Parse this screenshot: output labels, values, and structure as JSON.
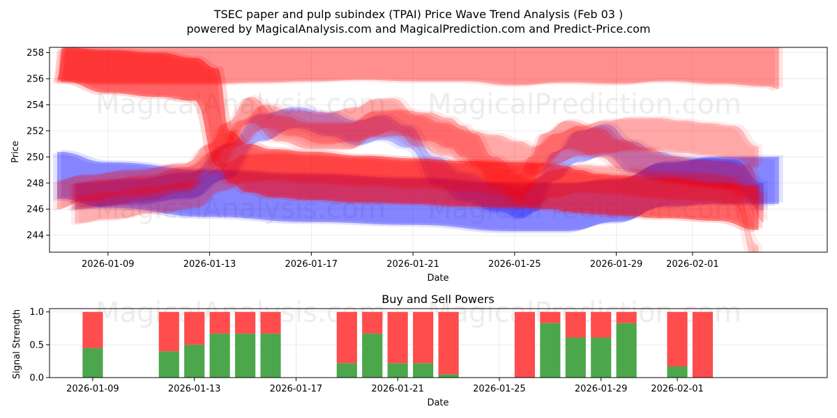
{
  "chart_data": [
    {
      "type": "area",
      "title_line1": "TSEC paper and pulp subindex (TPAI) Price Wave Trend Analysis (Feb 03 )",
      "title_line2": "powered by MagicalAnalysis.com and MagicalPrediction.com and Predict-Price.com",
      "xlabel": "Date",
      "ylabel": "Price",
      "xlim": [
        -2.3,
        28.3
      ],
      "ylim": [
        242.7,
        258.4
      ],
      "x_tick_labels": [
        "2026-01-09",
        "2026-01-13",
        "2026-01-17",
        "2026-01-21",
        "2026-01-25",
        "2026-01-29",
        "2026-02-01"
      ],
      "x_tick_days": [
        0,
        4,
        8,
        12,
        16,
        20,
        23
      ],
      "y_ticks": [
        244,
        246,
        248,
        250,
        252,
        254,
        256,
        258
      ],
      "grid": true,
      "watermark_text": [
        "MagicalAnalysis.com",
        "MagicalPrediction.com"
      ],
      "colors": {
        "sell": "#ff0000",
        "buy": "#0000ff",
        "white": "#ffffff"
      },
      "bands": [
        {
          "name": "blue wide band",
          "color": "#0000ff",
          "opacity": 0.33,
          "x": [
            -2,
            0,
            4,
            8,
            12,
            16,
            18,
            20,
            22,
            24,
            26.4
          ],
          "upper": [
            250.4,
            249.6,
            249,
            248.7,
            248.4,
            248,
            248,
            248.3,
            249.6,
            250,
            250
          ],
          "lower": [
            246.8,
            246.1,
            245.4,
            245,
            244.8,
            244.3,
            244.3,
            245,
            246.2,
            246.4,
            246.4
          ]
        },
        {
          "name": "blue wave band",
          "color": "#0000ff",
          "opacity": 0.22,
          "x": [
            -1.3,
            1,
            3.2,
            4.7,
            6,
            7.4,
            8.7,
            9.8,
            10.8,
            11.8,
            12.9,
            14,
            15.3,
            16.3,
            16.8,
            17.6,
            18.5,
            19.6,
            20.6,
            21.6,
            22.6,
            23.6,
            24.6,
            25.8
          ],
          "upper": [
            248,
            248.3,
            248.8,
            251,
            253.3,
            253.8,
            253.4,
            252.8,
            253.2,
            252.4,
            250,
            248.8,
            248,
            247.6,
            248.2,
            250.4,
            252,
            252.5,
            251.2,
            250.4,
            250,
            249.9,
            249.8,
            248
          ],
          "lower": [
            246,
            246.4,
            246.8,
            248.3,
            251.2,
            252.2,
            251.6,
            250.9,
            251.3,
            250.7,
            247.8,
            246.6,
            245.8,
            245.3,
            245.8,
            248.2,
            249.6,
            250.1,
            248.8,
            248.2,
            248,
            247.8,
            247.6,
            245.9
          ]
        },
        {
          "name": "red top band",
          "color": "#ff0000",
          "opacity": 0.3,
          "x": [
            -2,
            -1.7,
            0,
            4,
            6,
            8,
            10,
            12,
            14,
            16,
            18,
            20,
            22,
            24,
            26,
            26.4
          ],
          "upper": [
            256,
            258.4,
            258.4,
            258.4,
            258.4,
            258.4,
            258.4,
            258.4,
            258.4,
            258.4,
            258.4,
            258.4,
            258.4,
            258.4,
            258.4,
            258.4
          ],
          "lower": [
            255.8,
            255.7,
            255.6,
            255.6,
            255.7,
            255.8,
            255.9,
            255.8,
            255.8,
            255.5,
            255.7,
            255.6,
            255.8,
            255.6,
            255.4,
            255.2
          ]
        },
        {
          "name": "red step band",
          "color": "#ff0000",
          "opacity": 0.45,
          "x": [
            -2,
            -1.8,
            0,
            2,
            3.4,
            4.3,
            4.8,
            5.5,
            6.5,
            8,
            10,
            12,
            14,
            16,
            17.5,
            18,
            18.5,
            19.3,
            20,
            22,
            24,
            25.6
          ],
          "upper": [
            256,
            258.4,
            258.2,
            258,
            257.6,
            256.8,
            252,
            251,
            250.6,
            250.4,
            250.1,
            249.9,
            249.7,
            249.6,
            249.5,
            249.3,
            249,
            248.7,
            248.6,
            248.4,
            248,
            247.8
          ],
          "lower": [
            256,
            255.8,
            254.9,
            254.6,
            254.3,
            249.3,
            248,
            247.3,
            246.9,
            246.7,
            246.5,
            246.4,
            246.2,
            246.1,
            246,
            245.8,
            245.7,
            245.6,
            245.5,
            245.3,
            245.1,
            244.4
          ]
        },
        {
          "name": "red trend band",
          "color": "#ff0000",
          "opacity": 0.25,
          "x": [
            -2,
            -1,
            1,
            3,
            4,
            4.6,
            5.6,
            6.7,
            8,
            9.5,
            10.5,
            11.5,
            12.6,
            13.4,
            14,
            14.4,
            15.2,
            16.2,
            16.6,
            17.1,
            18.1,
            19.3,
            20.2,
            21.2,
            22.2,
            23.2,
            24.2,
            25.2,
            25.8
          ],
          "upper": [
            248.2,
            248.6,
            249,
            249.5,
            251,
            252.6,
            254.6,
            253.2,
            252.6,
            252.6,
            253.5,
            253.6,
            253.4,
            253,
            252.4,
            251.8,
            250,
            248.7,
            250,
            251.8,
            252.8,
            252.2,
            251.3,
            250.7,
            250.1,
            249.8,
            249.7,
            249.4,
            247.2
          ],
          "lower": [
            246,
            246.6,
            247.1,
            247.6,
            249,
            250.7,
            252.6,
            251.2,
            250.6,
            250.6,
            251.5,
            251.6,
            251.2,
            250.7,
            250,
            249.3,
            247.7,
            246.3,
            247.5,
            249.4,
            250.6,
            250,
            249.1,
            248.5,
            248,
            247.7,
            247.5,
            246.8,
            245
          ]
        },
        {
          "name": "red wave band",
          "color": "#ff0000",
          "opacity": 0.22,
          "x": [
            -1.4,
            0,
            1.5,
            3,
            4.3,
            5.2,
            6.2,
            7.2,
            8.5,
            9.8,
            10.4,
            11.2,
            12.2,
            13.2,
            14.2,
            15.2,
            16.2,
            16.8,
            17.6,
            18.6,
            19.6,
            20.6,
            21.6,
            22.6,
            23.6,
            24.6,
            25.6
          ],
          "upper": [
            248,
            248.3,
            248.6,
            249.2,
            250.5,
            252.8,
            254,
            253.6,
            253.4,
            253.8,
            254.4,
            254.5,
            253.2,
            252.6,
            252,
            251.7,
            251.2,
            250.8,
            251.8,
            252.4,
            252.8,
            253,
            253,
            252.8,
            252.6,
            252.4,
            250.8
          ],
          "lower": [
            246,
            246.3,
            246.7,
            247.3,
            248.8,
            250.9,
            252.2,
            251.6,
            251,
            251.2,
            251.6,
            252,
            250.8,
            250.1,
            249.5,
            249.3,
            248.9,
            248.6,
            249.5,
            250.1,
            250.3,
            250.5,
            250.5,
            250.3,
            250.1,
            249.9,
            249.2
          ]
        },
        {
          "name": "red low band",
          "color": "#ff0000",
          "opacity": 0.2,
          "x": [
            -1.3,
            0,
            2,
            3.5,
            4.5,
            5.5,
            6.5,
            8,
            10,
            12,
            14,
            16,
            16.6,
            17.6,
            18.6,
            19.6,
            20.6,
            21.6,
            22.6,
            23.6,
            24.6,
            25.6
          ],
          "upper": [
            247,
            247.3,
            247.8,
            248.2,
            249.5,
            250.2,
            250.3,
            250.1,
            249.9,
            249.7,
            249.5,
            249.1,
            248.3,
            249,
            249.4,
            249.3,
            249.1,
            248.9,
            248.8,
            248.7,
            248.5,
            243.2
          ]
        },
        {
          "name": "red low band lower",
          "color": "#ff0000",
          "opacity": 0.0,
          "x": [],
          "upper": [],
          "lower": []
        }
      ]
    },
    {
      "type": "bar",
      "title": "Buy and Sell Powers",
      "xlabel": "Date",
      "ylabel": "Signal Strength",
      "ylim": [
        0,
        1.05
      ],
      "y_ticks": [
        0.0,
        0.5,
        1.0
      ],
      "y_tick_labels": [
        "0.0",
        "0.5",
        "1.0"
      ],
      "x_tick_labels": [
        "2026-01-09",
        "2026-01-13",
        "2026-01-17",
        "2026-01-21",
        "2026-01-25",
        "2026-01-29",
        "2026-02-01"
      ],
      "x_tick_days": [
        0,
        4,
        8,
        12,
        16,
        20,
        23
      ],
      "series": [
        {
          "name": "Buy",
          "color": "#4ca64c"
        },
        {
          "name": "Sell",
          "color": "#ff4c4c"
        }
      ],
      "days": [
        -0.6,
        2.4,
        3.4,
        4.4,
        5.4,
        6.4,
        9.4,
        10.4,
        11.4,
        12.4,
        13.4,
        16.4,
        17.4,
        18.4,
        19.4,
        20.4,
        22.4,
        23.4
      ],
      "buy": [
        0.45,
        0.4,
        0.5,
        0.67,
        0.67,
        0.67,
        0.22,
        0.67,
        0.22,
        0.22,
        0.05,
        0.0,
        0.83,
        0.61,
        0.61,
        0.83,
        0.17,
        0.0
      ],
      "sell": [
        0.55,
        0.6,
        0.5,
        0.33,
        0.33,
        0.33,
        0.78,
        0.33,
        0.78,
        0.78,
        0.95,
        1.0,
        0.17,
        0.39,
        0.39,
        0.17,
        0.83,
        1.0
      ]
    }
  ]
}
